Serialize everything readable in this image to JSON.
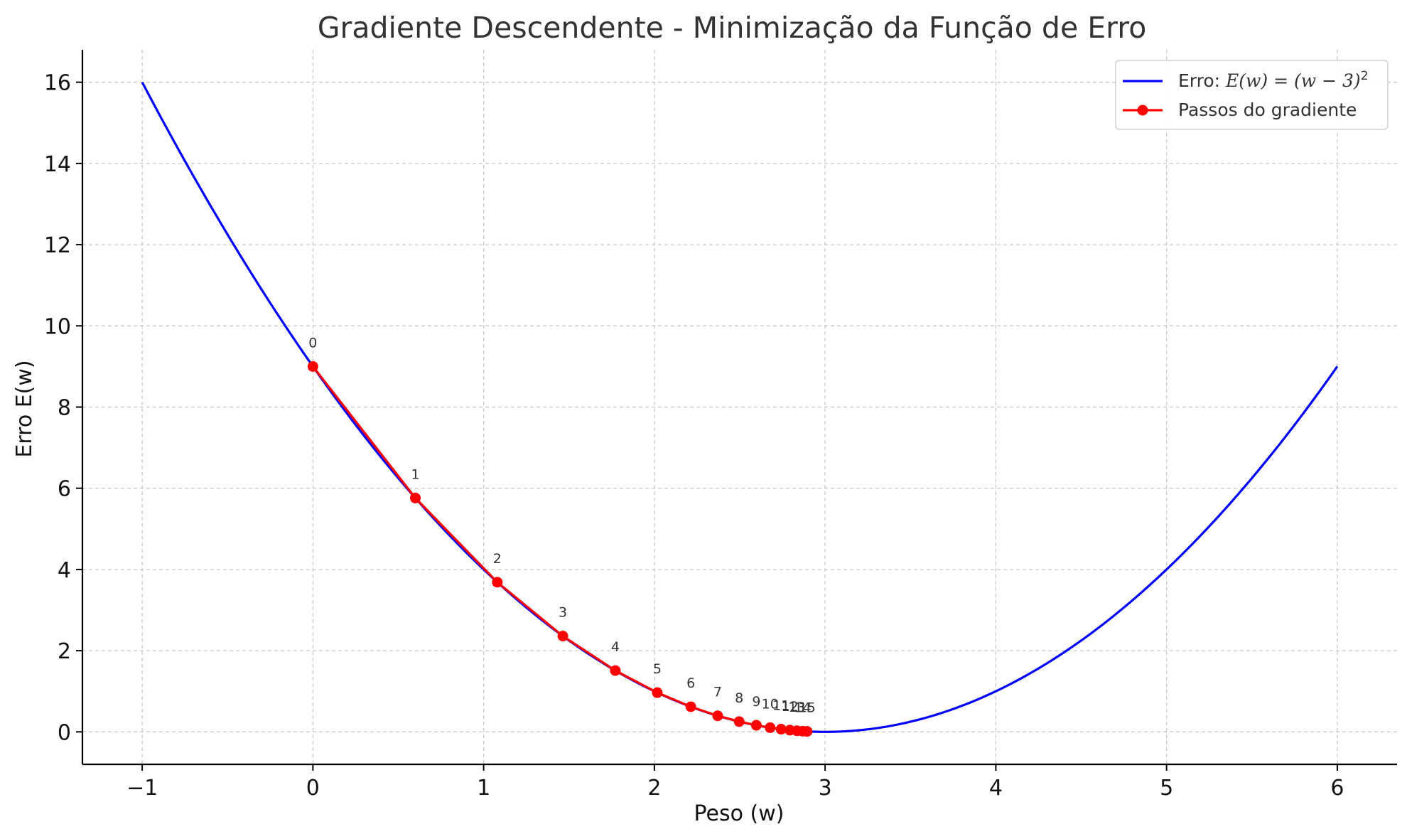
{
  "chart_data": {
    "type": "line",
    "title": "Gradiente Descendente - Minimização da Função de Erro",
    "xlabel": "Peso (w)",
    "ylabel": "Erro E(w)",
    "xlim": [
      -1.35,
      6.35
    ],
    "ylim": [
      -0.8,
      16.8
    ],
    "xticks": [
      -1,
      0,
      1,
      2,
      3,
      4,
      5,
      6
    ],
    "xtick_labels": [
      "−1",
      "0",
      "1",
      "2",
      "3",
      "4",
      "5",
      "6"
    ],
    "yticks": [
      0,
      2,
      4,
      6,
      8,
      10,
      12,
      14,
      16
    ],
    "ytick_labels": [
      "0",
      "2",
      "4",
      "6",
      "8",
      "10",
      "12",
      "14",
      "16"
    ],
    "grid": true,
    "legend_position": "top-right",
    "series": [
      {
        "name": "Erro: E(w) = (w − 3)²",
        "color": "#0000ff",
        "function": "(w-3)^2",
        "x_range": [
          -1,
          6
        ]
      },
      {
        "name": "Passos do gradiente",
        "color": "#ff0000",
        "marker": "circle",
        "x": [
          0,
          0.6,
          1.08,
          1.464,
          1.7712,
          2.017,
          2.2136,
          2.3709,
          2.4967,
          2.5973,
          2.6779,
          2.7423,
          2.7938,
          2.8351,
          2.8681,
          2.8945
        ],
        "y": [
          9,
          5.76,
          3.6864,
          2.3593,
          1.5099,
          0.9664,
          0.6185,
          0.3958,
          0.2533,
          0.1621,
          0.1038,
          0.0664,
          0.0425,
          0.0272,
          0.0174,
          0.0111
        ],
        "point_labels": [
          "0",
          "1",
          "2",
          "3",
          "4",
          "5",
          "6",
          "7",
          "8",
          "9",
          "10",
          "11",
          "12",
          "13",
          "14",
          "15"
        ]
      }
    ]
  }
}
